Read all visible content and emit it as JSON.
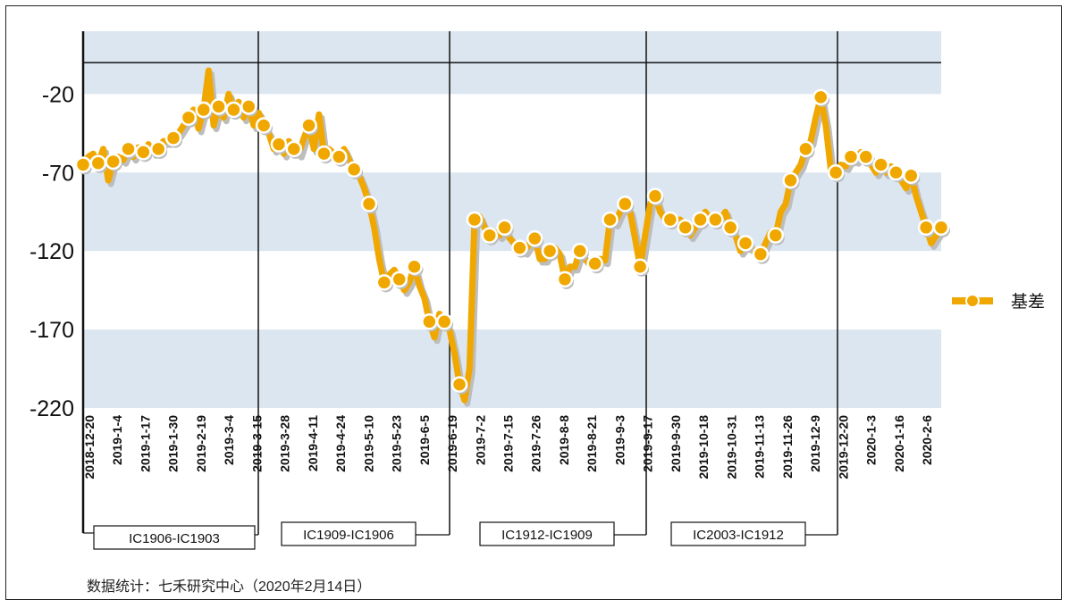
{
  "source_note": "数据统计：七禾研究中心（2020年2月14日）",
  "colors": {
    "series": "#F0A800",
    "shadow": "#BDBDBD",
    "band": "#DCE6F1",
    "axis": "#111111"
  },
  "chart_data": {
    "type": "line",
    "y_ticks": [
      "-20",
      "-70",
      "-120",
      "-170",
      "-220"
    ],
    "ylim": [
      -220,
      20
    ],
    "x_tick_labels": [
      "2018-12-20",
      "2019-1-4",
      "2019-1-17",
      "2019-1-30",
      "2019-2-19",
      "2019-3-4",
      "2019-3-15",
      "2019-3-28",
      "2019-4-11",
      "2019-4-24",
      "2019-5-10",
      "2019-5-23",
      "2019-6-5",
      "2019-6-19",
      "2019-7-2",
      "2019-7-15",
      "2019-7-26",
      "2019-8-8",
      "2019-8-21",
      "2019-9-3",
      "2019-9-17",
      "2019-9-30",
      "2019-10-18",
      "2019-10-31",
      "2019-11-13",
      "2019-11-26",
      "2019-12-9",
      "2019-12-20",
      "2020-1-3",
      "2020-1-16",
      "2020-2-6"
    ],
    "reference_line_y": 0,
    "contract_labels": [
      "IC1906-IC1903",
      "IC1909-IC1906",
      "IC1912-IC1909",
      "IC2003-IC1912"
    ],
    "legend_position": "right",
    "series": [
      {
        "name": "基差",
        "values": [
          -65,
          -60,
          -58,
          -64,
          -55,
          -75,
          -63,
          -60,
          -62,
          -55,
          -60,
          -54,
          -57,
          -52,
          -57,
          -55,
          -50,
          -50,
          -48,
          -45,
          -40,
          -35,
          -30,
          -42,
          -30,
          -5,
          -40,
          -28,
          -35,
          -20,
          -30,
          -25,
          -35,
          -28,
          -40,
          -32,
          -40,
          -45,
          -55,
          -52,
          -58,
          -50,
          -55,
          -58,
          -48,
          -40,
          -55,
          -33,
          -58,
          -55,
          -58,
          -60,
          -55,
          -62,
          -68,
          -72,
          -80,
          -90,
          -105,
          -125,
          -140,
          -135,
          -132,
          -138,
          -145,
          -140,
          -130,
          -142,
          -150,
          -165,
          -175,
          -160,
          -165,
          -170,
          -185,
          -205,
          -215,
          -195,
          -100,
          -98,
          -105,
          -110,
          -108,
          -110,
          -105,
          -112,
          -115,
          -118,
          -120,
          -115,
          -112,
          -125,
          -125,
          -120,
          -118,
          -122,
          -138,
          -130,
          -130,
          -120,
          -125,
          -128,
          -128,
          -125,
          -126,
          -100,
          -102,
          -95,
          -90,
          -95,
          -112,
          -130,
          -110,
          -90,
          -85,
          -95,
          -100,
          -100,
          -100,
          -100,
          -105,
          -110,
          -105,
          -100,
          -95,
          -100,
          -100,
          -100,
          -95,
          -105,
          -110,
          -120,
          -115,
          -118,
          -120,
          -122,
          -115,
          -108,
          -110,
          -95,
          -90,
          -75,
          -70,
          -65,
          -55,
          -50,
          -35,
          -22,
          -40,
          -68,
          -70,
          -65,
          -66,
          -60,
          -62,
          -57,
          -60,
          -65,
          -70,
          -65,
          -70,
          -66,
          -70,
          -75,
          -80,
          -72,
          -85,
          -95,
          -105,
          -115,
          -110,
          -105
        ]
      }
    ]
  }
}
